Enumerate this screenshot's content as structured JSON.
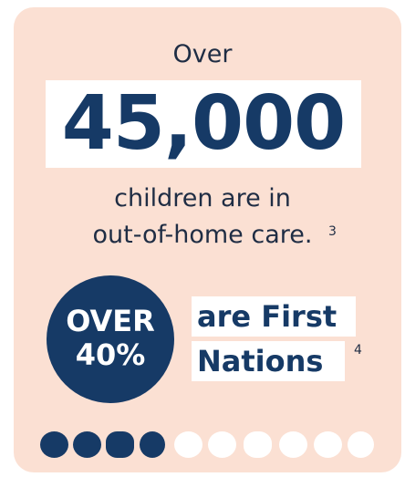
{
  "intro": "Over",
  "headline": "45,000",
  "body_lines": [
    "children are in",
    "out-of-home care."
  ],
  "body_note": "3",
  "badge": {
    "lines": [
      "OVER",
      "40%"
    ]
  },
  "label_lines": [
    "are First",
    "Nations"
  ],
  "label_note": "4"
}
